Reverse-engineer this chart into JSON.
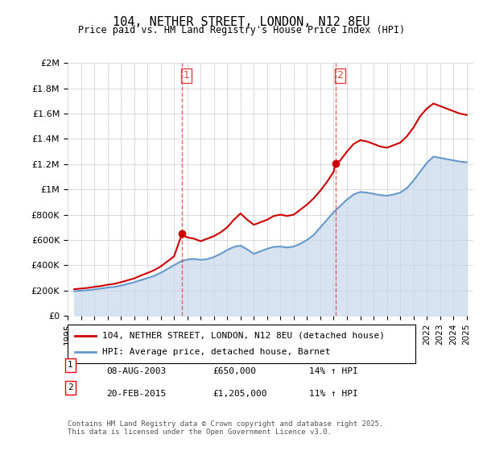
{
  "title": "104, NETHER STREET, LONDON, N12 8EU",
  "subtitle": "Price paid vs. HM Land Registry's House Price Index (HPI)",
  "ylabel": "",
  "ylim": [
    0,
    2000000
  ],
  "yticks": [
    0,
    200000,
    400000,
    600000,
    800000,
    1000000,
    1200000,
    1400000,
    1600000,
    1800000,
    2000000
  ],
  "ytick_labels": [
    "£0",
    "£200K",
    "£400K",
    "£600K",
    "£800K",
    "£1M",
    "£1.2M",
    "£1.4M",
    "£1.6M",
    "£1.8M",
    "£2M"
  ],
  "xlim_start": 1995.0,
  "xlim_end": 2025.5,
  "marker1_x": 2003.6,
  "marker1_y": 650000,
  "marker1_label": "1",
  "marker1_date": "08-AUG-2003",
  "marker1_price": "£650,000",
  "marker1_hpi": "14% ↑ HPI",
  "marker2_x": 2015.13,
  "marker2_y": 1205000,
  "marker2_label": "2",
  "marker2_date": "20-FEB-2015",
  "marker2_price": "£1,205,000",
  "marker2_hpi": "11% ↑ HPI",
  "property_line_color": "#cc0000",
  "hpi_line_color": "#6699cc",
  "hpi_fill_color": "#c8d8ec",
  "vline_color": "#dd4444",
  "grid_color": "#cccccc",
  "background_color": "#ffffff",
  "legend_property": "104, NETHER STREET, LONDON, N12 8EU (detached house)",
  "legend_hpi": "HPI: Average price, detached house, Barnet",
  "footnote": "Contains HM Land Registry data © Crown copyright and database right 2025.\nThis data is licensed under the Open Government Licence v3.0.",
  "property_data": [
    [
      1995.5,
      210000
    ],
    [
      1996.0,
      215000
    ],
    [
      1996.5,
      220000
    ],
    [
      1997.0,
      228000
    ],
    [
      1997.5,
      235000
    ],
    [
      1998.0,
      245000
    ],
    [
      1998.5,
      252000
    ],
    [
      1999.0,
      265000
    ],
    [
      1999.5,
      280000
    ],
    [
      2000.0,
      295000
    ],
    [
      2000.5,
      318000
    ],
    [
      2001.0,
      338000
    ],
    [
      2001.5,
      360000
    ],
    [
      2002.0,
      390000
    ],
    [
      2002.5,
      430000
    ],
    [
      2003.0,
      470000
    ],
    [
      2003.6,
      650000
    ],
    [
      2003.8,
      630000
    ],
    [
      2004.0,
      620000
    ],
    [
      2004.5,
      610000
    ],
    [
      2005.0,
      590000
    ],
    [
      2005.5,
      610000
    ],
    [
      2006.0,
      630000
    ],
    [
      2006.5,
      660000
    ],
    [
      2007.0,
      700000
    ],
    [
      2007.5,
      760000
    ],
    [
      2008.0,
      810000
    ],
    [
      2008.5,
      760000
    ],
    [
      2009.0,
      720000
    ],
    [
      2009.5,
      740000
    ],
    [
      2010.0,
      760000
    ],
    [
      2010.5,
      790000
    ],
    [
      2011.0,
      800000
    ],
    [
      2011.5,
      790000
    ],
    [
      2012.0,
      800000
    ],
    [
      2012.5,
      840000
    ],
    [
      2013.0,
      880000
    ],
    [
      2013.5,
      930000
    ],
    [
      2014.0,
      990000
    ],
    [
      2014.5,
      1060000
    ],
    [
      2015.0,
      1140000
    ],
    [
      2015.13,
      1205000
    ],
    [
      2015.5,
      1230000
    ],
    [
      2016.0,
      1300000
    ],
    [
      2016.5,
      1360000
    ],
    [
      2017.0,
      1390000
    ],
    [
      2017.5,
      1380000
    ],
    [
      2018.0,
      1360000
    ],
    [
      2018.5,
      1340000
    ],
    [
      2019.0,
      1330000
    ],
    [
      2019.5,
      1350000
    ],
    [
      2020.0,
      1370000
    ],
    [
      2020.5,
      1420000
    ],
    [
      2021.0,
      1490000
    ],
    [
      2021.5,
      1580000
    ],
    [
      2022.0,
      1640000
    ],
    [
      2022.5,
      1680000
    ],
    [
      2023.0,
      1660000
    ],
    [
      2023.5,
      1640000
    ],
    [
      2024.0,
      1620000
    ],
    [
      2024.5,
      1600000
    ],
    [
      2025.0,
      1590000
    ]
  ],
  "hpi_data": [
    [
      1995.5,
      195000
    ],
    [
      1996.0,
      198000
    ],
    [
      1996.5,
      202000
    ],
    [
      1997.0,
      208000
    ],
    [
      1997.5,
      215000
    ],
    [
      1998.0,
      223000
    ],
    [
      1998.5,
      228000
    ],
    [
      1999.0,
      238000
    ],
    [
      1999.5,
      252000
    ],
    [
      2000.0,
      265000
    ],
    [
      2000.5,
      282000
    ],
    [
      2001.0,
      298000
    ],
    [
      2001.5,
      315000
    ],
    [
      2002.0,
      340000
    ],
    [
      2002.5,
      370000
    ],
    [
      2003.0,
      400000
    ],
    [
      2003.5,
      430000
    ],
    [
      2004.0,
      445000
    ],
    [
      2004.5,
      450000
    ],
    [
      2005.0,
      442000
    ],
    [
      2005.5,
      448000
    ],
    [
      2006.0,
      465000
    ],
    [
      2006.5,
      490000
    ],
    [
      2007.0,
      520000
    ],
    [
      2007.5,
      545000
    ],
    [
      2008.0,
      555000
    ],
    [
      2008.5,
      525000
    ],
    [
      2009.0,
      490000
    ],
    [
      2009.5,
      510000
    ],
    [
      2010.0,
      530000
    ],
    [
      2010.5,
      545000
    ],
    [
      2011.0,
      548000
    ],
    [
      2011.5,
      540000
    ],
    [
      2012.0,
      548000
    ],
    [
      2012.5,
      570000
    ],
    [
      2013.0,
      600000
    ],
    [
      2013.5,
      640000
    ],
    [
      2014.0,
      700000
    ],
    [
      2014.5,
      760000
    ],
    [
      2015.0,
      820000
    ],
    [
      2015.5,
      870000
    ],
    [
      2016.0,
      920000
    ],
    [
      2016.5,
      960000
    ],
    [
      2017.0,
      980000
    ],
    [
      2017.5,
      975000
    ],
    [
      2018.0,
      965000
    ],
    [
      2018.5,
      955000
    ],
    [
      2019.0,
      950000
    ],
    [
      2019.5,
      960000
    ],
    [
      2020.0,
      975000
    ],
    [
      2020.5,
      1010000
    ],
    [
      2021.0,
      1070000
    ],
    [
      2021.5,
      1140000
    ],
    [
      2022.0,
      1210000
    ],
    [
      2022.5,
      1260000
    ],
    [
      2023.0,
      1250000
    ],
    [
      2023.5,
      1240000
    ],
    [
      2024.0,
      1230000
    ],
    [
      2024.5,
      1220000
    ],
    [
      2025.0,
      1215000
    ]
  ]
}
